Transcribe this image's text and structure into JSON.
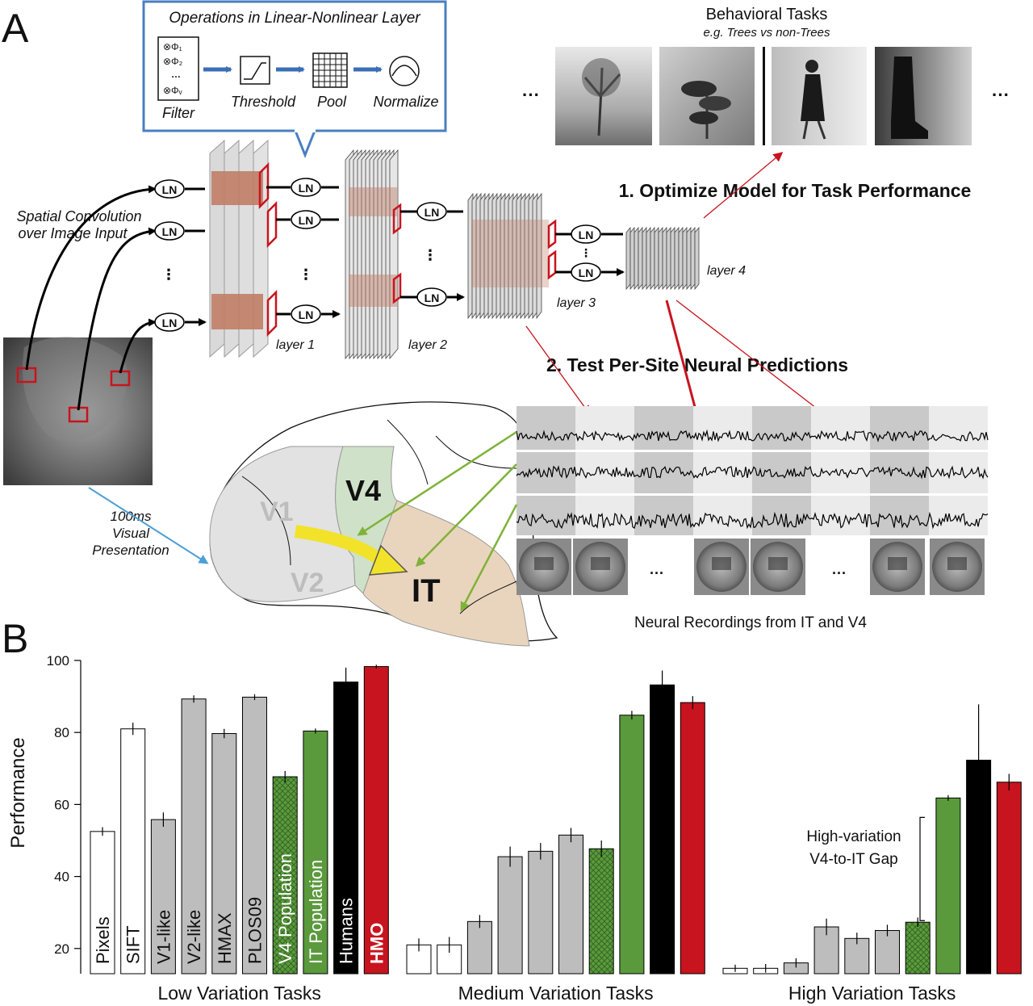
{
  "panel_a": {
    "label": "A",
    "ln_box_title": "Operations in Linear-Nonlinear Layer",
    "ops": [
      "Filter",
      "Threshold",
      "Pool",
      "Normalize"
    ],
    "filter_terms": [
      "⊗Φ₁",
      "⊗Φ₂",
      "…",
      "⊗Φᵥ"
    ],
    "ln_label": "LN",
    "dots": "···",
    "spatial_conv": [
      "Spatial Convolution",
      "over Image Input"
    ],
    "layers": [
      "layer 1",
      "layer 2",
      "layer 3",
      "layer 4"
    ],
    "behavioral_title": "Behavioral Tasks",
    "behavioral_sub": "e.g. Trees vs non-Trees",
    "step1": "1. Optimize Model for Task Performance",
    "step2": "2. Test Per-Site Neural Predictions",
    "presentation": [
      "100ms",
      "Visual",
      "Presentation"
    ],
    "areas": [
      "V1",
      "V2",
      "V4",
      "IT"
    ],
    "neural_caption": "Neural Recordings from IT and V4",
    "colors": {
      "box": "#4a7fc1",
      "arrow_blue": "#3a6fb5",
      "red": "#c8141e",
      "green": "#7fb23a",
      "v4_area": "#cfe1c8",
      "it_area": "#e9d5bd",
      "yellow": "#f2e22a",
      "layer_red": "#c8141e"
    }
  },
  "panel_b": {
    "label": "B",
    "chart_data": {
      "type": "bar",
      "ylabel": "Performance",
      "ylim": [
        13,
        100
      ],
      "yticks": [
        20,
        40,
        60,
        80,
        100
      ],
      "models": [
        "Pixels",
        "SIFT",
        "V1-like",
        "V2-like",
        "HMAX",
        "PLOS09",
        "V4 Population",
        "IT Population",
        "Humans",
        "HMO"
      ],
      "model_colors": [
        "#ffffff",
        "#ffffff",
        "#bdbdbd",
        "#bdbdbd",
        "#bdbdbd",
        "#bdbdbd",
        "#5a9a3c",
        "#5a9a3c",
        "#000000",
        "#c8141e"
      ],
      "model_label_colors": [
        "#111111",
        "#111111",
        "#111111",
        "#111111",
        "#111111",
        "#111111",
        "#ffffff",
        "#ffffff",
        "#ffffff",
        "#ffffff"
      ],
      "groups": [
        {
          "name": "Low Variation Tasks",
          "values": [
            52.5,
            81,
            55.8,
            89.3,
            79.7,
            89.8,
            67.7,
            80.4,
            94,
            98.3
          ],
          "errors": [
            1.2,
            1.7,
            2,
            1,
            1.3,
            0.8,
            1.6,
            0.7,
            4,
            0.5
          ]
        },
        {
          "name": "Medium Variation Tasks",
          "values": [
            21,
            21,
            27.5,
            45.5,
            47,
            51.5,
            47.7,
            84.8,
            93.2,
            88.3
          ],
          "errors": [
            1.8,
            2.2,
            1.8,
            2.8,
            2.3,
            2,
            2.3,
            1.2,
            4,
            1.8
          ]
        },
        {
          "name": "High Variation Tasks",
          "values": [
            14.5,
            14.5,
            16,
            26,
            22.8,
            25,
            27.3,
            61.8,
            72.3,
            66.2
          ],
          "errors": [
            1,
            1.2,
            1.3,
            2.3,
            1.6,
            1.6,
            1.3,
            0.8,
            15.5,
            2.3
          ]
        }
      ],
      "annotation": [
        "High-variation",
        "V4-to-IT Gap"
      ]
    }
  }
}
